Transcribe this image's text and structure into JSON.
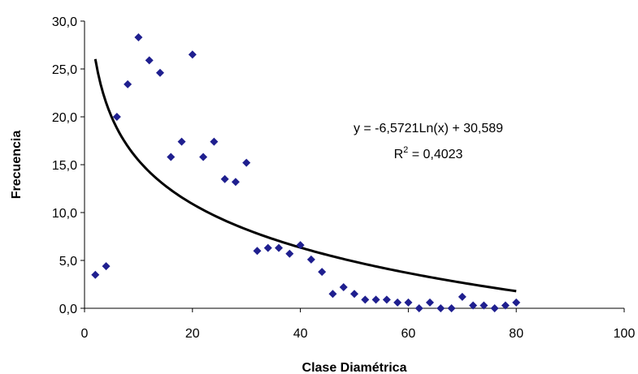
{
  "chart_data": {
    "type": "scatter",
    "xlabel": "Clase Diamétrica",
    "ylabel": "Frecuencia",
    "xlim": [
      0,
      100
    ],
    "ylim": [
      0,
      30
    ],
    "x_ticks": [
      "0",
      "20",
      "40",
      "60",
      "80",
      "100"
    ],
    "y_ticks": [
      "0,0",
      "5,0",
      "10,0",
      "15,0",
      "20,0",
      "25,0",
      "30,0"
    ],
    "grid": false,
    "legend": "none",
    "series": [
      {
        "color": "#1F1F8F",
        "marker": "diamond",
        "x": [
          2,
          4,
          6,
          8,
          10,
          12,
          14,
          16,
          18,
          20,
          22,
          24,
          26,
          28,
          30,
          32,
          34,
          36,
          38,
          40,
          42,
          44,
          46,
          48,
          50,
          52,
          54,
          56,
          58,
          60,
          62,
          64,
          66,
          68,
          70,
          72,
          74,
          76,
          78,
          80
        ],
        "y": [
          3.5,
          4.4,
          20.0,
          23.4,
          28.3,
          25.9,
          24.6,
          15.8,
          17.4,
          26.5,
          15.8,
          17.4,
          13.5,
          13.2,
          15.2,
          6.0,
          6.3,
          6.3,
          5.7,
          6.6,
          5.1,
          3.8,
          1.5,
          2.2,
          1.5,
          0.9,
          0.9,
          0.9,
          0.6,
          0.6,
          0.0,
          0.6,
          0.0,
          0.0,
          1.2,
          0.3,
          0.3,
          0.0,
          0.3,
          0.6
        ]
      }
    ],
    "trendline": {
      "type": "logarithmic",
      "color": "#000000",
      "a": -6.5721,
      "b": 30.589,
      "x_range": [
        2,
        80
      ],
      "equation": "y = -6,5721Ln(x) + 30,589",
      "r2_label": "R",
      "r2_sup": "2",
      "r2_value": " = 0,4023"
    }
  }
}
